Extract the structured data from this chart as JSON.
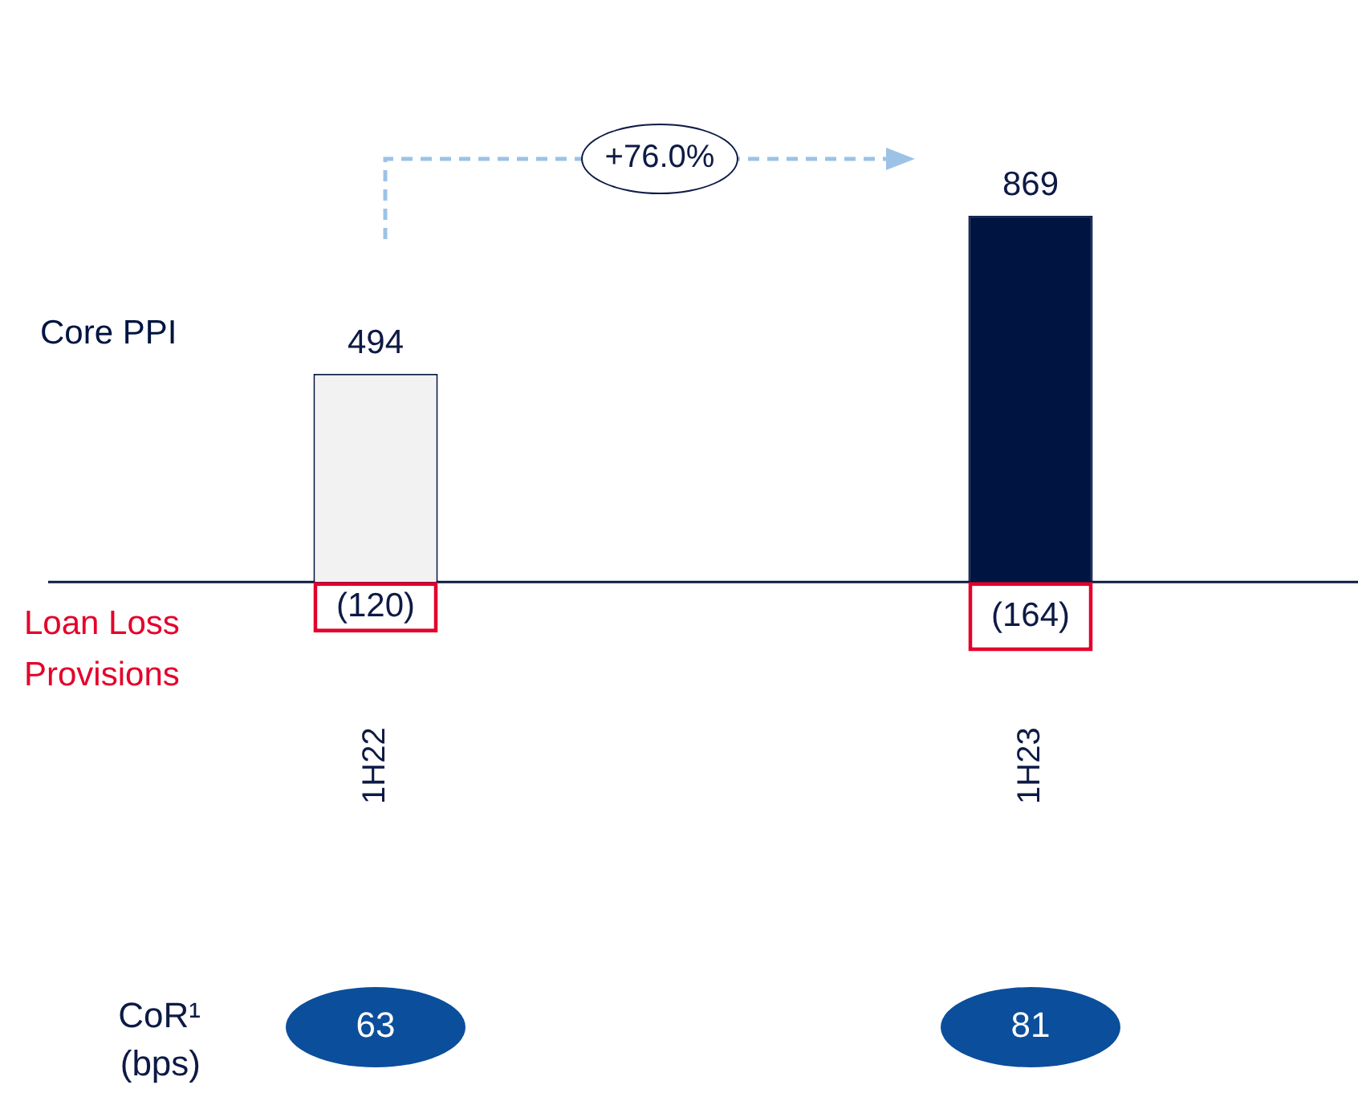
{
  "chart_data": {
    "type": "bar",
    "stacked": true,
    "categories": [
      "1H22",
      "1H23"
    ],
    "series": [
      {
        "name": "Core PPI",
        "color": "#001441",
        "colors": [
          "#f2f2f2",
          "#001441"
        ],
        "values": [
          494,
          869
        ],
        "value_labels": [
          "494",
          "869"
        ]
      },
      {
        "name": "Loan Loss Provisions",
        "color": "#e4002b",
        "values": [
          -120,
          -164
        ],
        "value_labels": [
          "(120)",
          "(164)"
        ]
      }
    ],
    "annotations": [
      "+76.0%",
      "CoR¹ (bps)",
      "63",
      "81"
    ]
  }
}
